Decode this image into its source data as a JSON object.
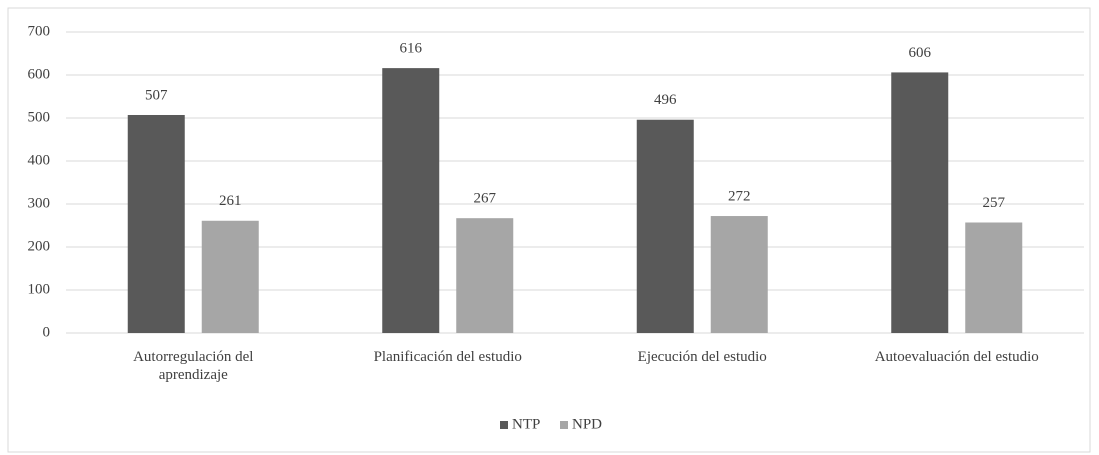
{
  "chart_data": {
    "type": "bar",
    "categories": [
      "Autorregulación del aprendizaje",
      "Planificación del estudio",
      "Ejecución del estudio",
      "Autoevaluación del estudio"
    ],
    "series": [
      {
        "name": "NTP",
        "color": "#595959",
        "values": [
          507,
          616,
          496,
          606
        ]
      },
      {
        "name": "NPD",
        "color": "#a6a6a6",
        "values": [
          261,
          267,
          272,
          257
        ]
      }
    ],
    "ylim": [
      0,
      700
    ],
    "yticks": [
      0,
      100,
      200,
      300,
      400,
      500,
      600,
      700
    ],
    "grid": true,
    "legend": "bottom"
  }
}
